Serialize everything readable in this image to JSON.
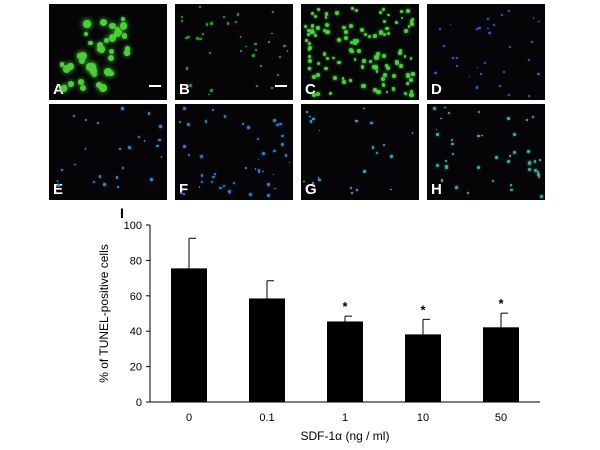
{
  "panels": [
    {
      "label": "A",
      "color": "#4ccf3a",
      "scale_bar": true
    },
    {
      "label": "B",
      "color": "#2f9a2a",
      "scale_bar": true
    },
    {
      "label": "C",
      "color": "#4ccf3a",
      "scale_bar": false
    },
    {
      "label": "D",
      "color": "#2a5fd0",
      "scale_bar": false
    },
    {
      "label": "E",
      "color": "#2a8fd0",
      "scale_bar": false
    },
    {
      "label": "F",
      "color": "#2a7fd0",
      "scale_bar": false
    },
    {
      "label": "G",
      "color": "#3aa0d0",
      "scale_bar": false
    },
    {
      "label": "H",
      "color": "#3ab0a0",
      "scale_bar": false
    }
  ],
  "chart_label": "I",
  "chart_data": {
    "type": "bar",
    "categories": [
      "0",
      "0.1",
      "1",
      "10",
      "50"
    ],
    "values": [
      75.5,
      58.5,
      45.5,
      38.2,
      42.2
    ],
    "errors": [
      17,
      10,
      3,
      8.5,
      8
    ],
    "significance": [
      "",
      "",
      "*",
      "*",
      "*"
    ],
    "xlabel": "SDF-1α (ng / ml)",
    "ylabel": "% of TUNEL-positive cells",
    "ylim": [
      0,
      100
    ],
    "yticks": [
      "0",
      "20",
      "40",
      "60",
      "80",
      "100"
    ],
    "bar_color": "#000000",
    "grid": false
  }
}
